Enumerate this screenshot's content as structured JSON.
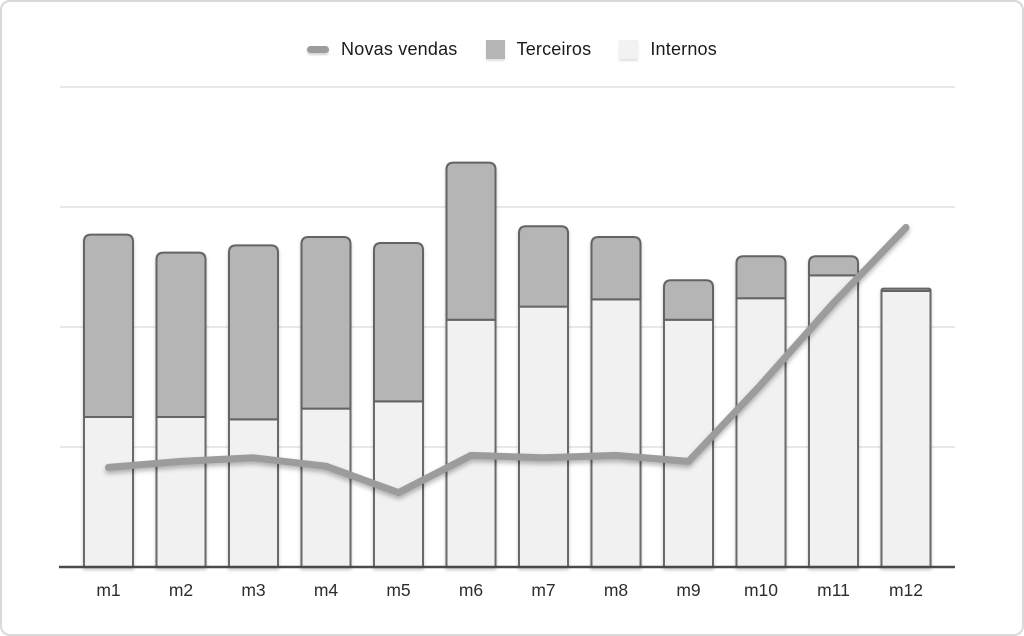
{
  "legend": {
    "items": [
      {
        "label": "Novas vendas",
        "swatch": "line",
        "color": "#9c9c9c"
      },
      {
        "label": "Terceiros",
        "swatch": "square",
        "color": "#b5b5b5"
      },
      {
        "label": "Internos",
        "swatch": "square",
        "color": "#f2f2f2"
      }
    ]
  },
  "chart_data": {
    "type": "combo",
    "bar_mode": "stacked",
    "title": "",
    "xlabel": "",
    "ylabel": "",
    "categories": [
      "m1",
      "m2",
      "m3",
      "m4",
      "m5",
      "m6",
      "m7",
      "m8",
      "m9",
      "m10",
      "m11",
      "m12"
    ],
    "series": [
      {
        "name": "Internos",
        "type": "bar",
        "stack_order": "bottom",
        "color": "#f1f1f2",
        "border_color": "#6a6a6a",
        "values": [
          1.25,
          1.25,
          1.23,
          1.32,
          1.38,
          2.06,
          2.17,
          2.23,
          2.06,
          2.24,
          2.43,
          2.3
        ]
      },
      {
        "name": "Terceiros",
        "type": "bar",
        "stack_order": "top",
        "color": "#b5b5b5",
        "border_color": "#646464",
        "values": [
          1.52,
          1.37,
          1.45,
          1.43,
          1.32,
          1.31,
          0.67,
          0.52,
          0.33,
          0.35,
          0.16,
          0.02
        ]
      },
      {
        "name": "Novas vendas",
        "type": "line",
        "color": "#9c9c9c",
        "values": [
          0.83,
          0.88,
          0.91,
          0.84,
          0.62,
          0.93,
          0.91,
          0.93,
          0.88,
          1.52,
          2.2,
          2.83
        ]
      }
    ],
    "ylim": [
      0,
      4
    ],
    "y_gridline_step": 1,
    "y_tick_labels_visible": false,
    "grid": true,
    "legend_position": "top-center",
    "axis_color": "#4a4a4a",
    "gridline_color": "#e8e8e8",
    "x_label_color": "#2d2d2d",
    "note": "y-axis shows no numeric labels; values expressed in gridline units (one gridline spacing = 1 unit)"
  }
}
